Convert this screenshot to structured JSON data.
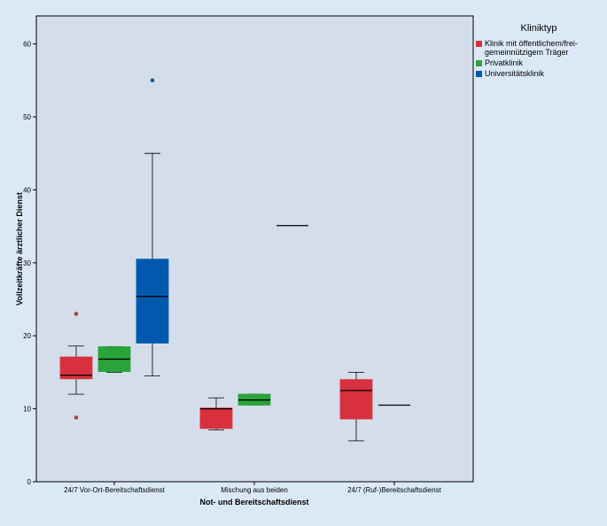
{
  "chart_data": {
    "type": "boxplot",
    "title": "",
    "xlabel": "Not- und Bereitschaftsdienst",
    "ylabel": "Vollzeitkräfte ärztlicher Dienst",
    "ylim": [
      0,
      65
    ],
    "yticks": [
      0,
      10,
      20,
      30,
      40,
      50,
      60
    ],
    "categories": [
      "24/7 Vor-Ort-Bereitschaftsdienst",
      "Mischung aus beiden",
      "24/7 (Ruf-)Bereitschaftsdienst"
    ],
    "legend": {
      "title": "Kliniktyp",
      "position": "top-right",
      "entries": [
        {
          "label": "Klinik mit öffentlichem/frei-",
          "label2": "gemeinnützigem Träger",
          "color": "#d9303e"
        },
        {
          "label": "Privatklinik",
          "color": "#2aa43a"
        },
        {
          "label": "Universitätsklinik",
          "color": "#0059ad"
        }
      ]
    },
    "series": [
      {
        "color": "#d9303e",
        "boxes": [
          {
            "category": 0,
            "min": 12,
            "q1": 14.1,
            "median": 14.6,
            "q3": 17.1,
            "max": 18.6,
            "outliers": [
              23,
              8.8
            ]
          },
          {
            "category": 1,
            "min": 7.1,
            "q1": 7.3,
            "median": 10,
            "q3": 10.1,
            "max": 11.5,
            "outliers": []
          },
          {
            "category": 2,
            "min": 5.6,
            "q1": 8.6,
            "median": 12.5,
            "q3": 14,
            "max": 15,
            "outliers": []
          }
        ]
      },
      {
        "color": "#2aa43a",
        "boxes": [
          {
            "category": 0,
            "min": 15,
            "q1": 15.1,
            "median": 16.8,
            "q3": 18.5,
            "max": 18.5,
            "outliers": []
          },
          {
            "category": 1,
            "min": 10.5,
            "q1": 10.5,
            "median": 11.2,
            "q3": 12,
            "max": 12,
            "outliers": []
          },
          {
            "category": 2,
            "min": 10.5,
            "q1": 10.5,
            "median": 10.5,
            "q3": 10.5,
            "max": 10.5,
            "outliers": []
          }
        ]
      },
      {
        "color": "#0059ad",
        "boxes": [
          {
            "category": 0,
            "min": 14.5,
            "q1": 19,
            "median": 25.4,
            "q3": 30.5,
            "max": 45,
            "outliers": [
              55
            ]
          },
          {
            "category": 1,
            "min": 35.1,
            "q1": 35.1,
            "median": 35.1,
            "q3": 35.1,
            "max": 35.1,
            "outliers": []
          }
        ]
      }
    ]
  }
}
